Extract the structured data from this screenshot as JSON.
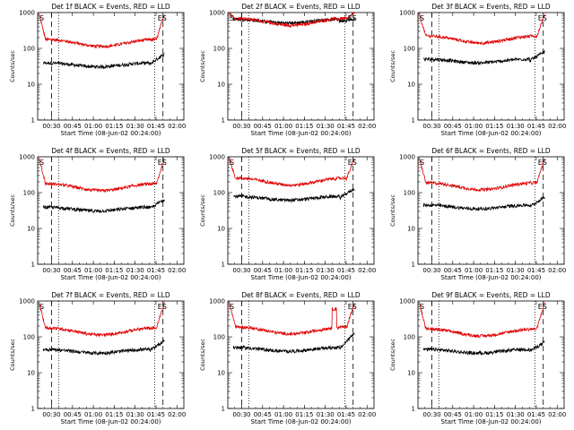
{
  "chart_data": {
    "type": "line",
    "yscale": "log",
    "ylim": [
      1,
      1000
    ],
    "xlim_min": [
      20,
      125
    ],
    "xticks": [
      "00:30",
      "00:45",
      "01:00",
      "01:15",
      "01:30",
      "01:45",
      "02:00"
    ],
    "yticks": [
      "1",
      "10",
      "100",
      "1000"
    ],
    "ylabel": "Counts/sec",
    "xlabel": "Start Time (08-Jun-02 00:24:00)",
    "series_legend": "BLACK = Events, RED = LLD",
    "marker_left": "S",
    "marker_right": "S",
    "marker_right_prefix": "E",
    "dashed_lines_min": [
      30,
      110
    ],
    "dotted_lines_min": [
      35,
      104
    ],
    "panels": [
      {
        "title": "Det 1f BLACK = Events, RED = LLD",
        "red_level": 160,
        "black_level": 35,
        "red_edge": 900,
        "black_end": 70,
        "bump": null
      },
      {
        "title": "Det 2f BLACK = Events, RED = LLD",
        "red_level": 620,
        "black_level": 580,
        "red_edge": 1000,
        "black_end": 650,
        "bump": null
      },
      {
        "title": "Det 3f BLACK = Events, RED = LLD",
        "red_level": 200,
        "black_level": 45,
        "red_edge": 900,
        "black_end": 80,
        "bump": null
      },
      {
        "title": "Det 4f BLACK = Events, RED = LLD",
        "red_level": 160,
        "black_level": 35,
        "red_edge": 900,
        "black_end": 65,
        "bump": null
      },
      {
        "title": "Det 5f BLACK = Events, RED = LLD",
        "red_level": 230,
        "black_level": 70,
        "red_edge": 900,
        "black_end": 130,
        "bump": null
      },
      {
        "title": "Det 6f BLACK = Events, RED = LLD",
        "red_level": 170,
        "black_level": 40,
        "red_edge": 900,
        "black_end": 75,
        "bump": null
      },
      {
        "title": "Det 7f BLACK = Events, RED = LLD",
        "red_level": 160,
        "black_level": 40,
        "red_edge": 900,
        "black_end": 80,
        "bump": null
      },
      {
        "title": "Det 8f BLACK = Events, RED = LLD",
        "red_level": 170,
        "black_level": 45,
        "red_edge": 900,
        "black_end": 130,
        "bump": {
          "start": 95,
          "end": 98,
          "level": 600
        }
      },
      {
        "title": "Det 9f BLACK = Events, RED = LLD",
        "red_level": 150,
        "black_level": 40,
        "red_edge": 900,
        "black_end": 70,
        "bump": null
      }
    ]
  }
}
